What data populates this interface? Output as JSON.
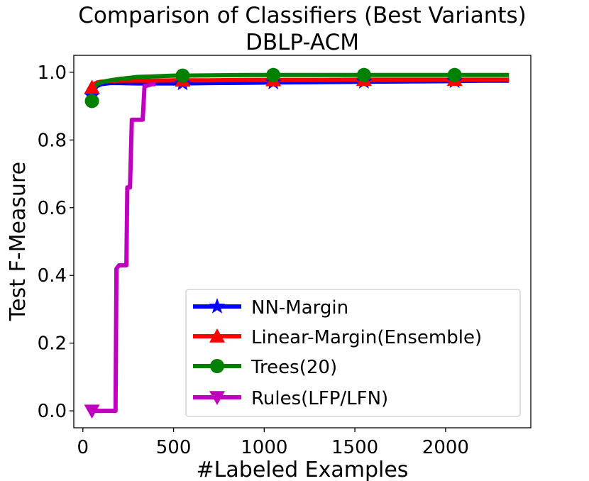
{
  "chart_data": {
    "type": "line",
    "title": "Comparison of Classifiers (Best Variants)",
    "subtitle": "DBLP-ACM",
    "xlabel": "#Labeled Examples",
    "ylabel": "Test F-Measure",
    "xlim": [
      -50,
      2470
    ],
    "ylim": [
      -0.05,
      1.05
    ],
    "xticks": [
      0,
      500,
      1000,
      1500,
      2000
    ],
    "yticks": [
      0.0,
      0.2,
      0.4,
      0.6,
      0.8,
      1.0
    ],
    "xtick_labels": [
      "0",
      "500",
      "1000",
      "1500",
      "2000"
    ],
    "ytick_labels": [
      "0.0",
      "0.2",
      "0.4",
      "0.6",
      "0.8",
      "1.0"
    ],
    "grid": false,
    "legend_position": "lower-right",
    "series": [
      {
        "name": "NN-Margin",
        "color": "#0000ff",
        "marker": "star",
        "marker_x": [
          50,
          550,
          1050,
          1550,
          2050
        ],
        "x": [
          50,
          60,
          80,
          100,
          150,
          200,
          300,
          400,
          500,
          550,
          700,
          900,
          1050,
          1300,
          1550,
          1800,
          2050,
          2200,
          2350
        ],
        "y": [
          0.93,
          0.95,
          0.96,
          0.965,
          0.968,
          0.968,
          0.967,
          0.967,
          0.967,
          0.967,
          0.968,
          0.969,
          0.97,
          0.971,
          0.972,
          0.973,
          0.974,
          0.975,
          0.975
        ]
      },
      {
        "name": "Linear-Margin(Ensemble)",
        "color": "#ff0000",
        "marker": "triangle-up",
        "marker_x": [
          50,
          550,
          1050,
          1550,
          2050
        ],
        "x": [
          50,
          60,
          80,
          100,
          150,
          200,
          300,
          400,
          500,
          550,
          700,
          900,
          1050,
          1300,
          1550,
          1800,
          2050,
          2200,
          2350
        ],
        "y": [
          0.955,
          0.965,
          0.97,
          0.972,
          0.974,
          0.975,
          0.975,
          0.975,
          0.976,
          0.976,
          0.976,
          0.977,
          0.977,
          0.977,
          0.978,
          0.978,
          0.978,
          0.978,
          0.978
        ]
      },
      {
        "name": "Trees(20)",
        "color": "#008000",
        "marker": "circle",
        "marker_x": [
          50,
          550,
          1050,
          1550,
          2050
        ],
        "x": [
          50,
          60,
          70,
          80,
          100,
          120,
          150,
          200,
          250,
          300,
          400,
          500,
          550,
          700,
          900,
          1050,
          1300,
          1550,
          1800,
          2050,
          2200,
          2350
        ],
        "y": [
          0.915,
          0.95,
          0.96,
          0.965,
          0.97,
          0.973,
          0.976,
          0.98,
          0.983,
          0.986,
          0.988,
          0.99,
          0.99,
          0.991,
          0.992,
          0.992,
          0.992,
          0.992,
          0.992,
          0.992,
          0.992,
          0.992
        ]
      },
      {
        "name": "Rules(LFP/LFN)",
        "color": "#bf00bf",
        "marker": "triangle-down",
        "marker_x": [
          50
        ],
        "x": [
          50,
          120,
          180,
          185,
          200,
          240,
          245,
          260,
          270,
          280,
          330,
          340,
          350,
          380,
          400
        ],
        "y": [
          0.0,
          0.0,
          0.0,
          0.42,
          0.43,
          0.43,
          0.66,
          0.66,
          0.86,
          0.86,
          0.86,
          0.96,
          0.96,
          0.965,
          0.965
        ]
      }
    ]
  }
}
